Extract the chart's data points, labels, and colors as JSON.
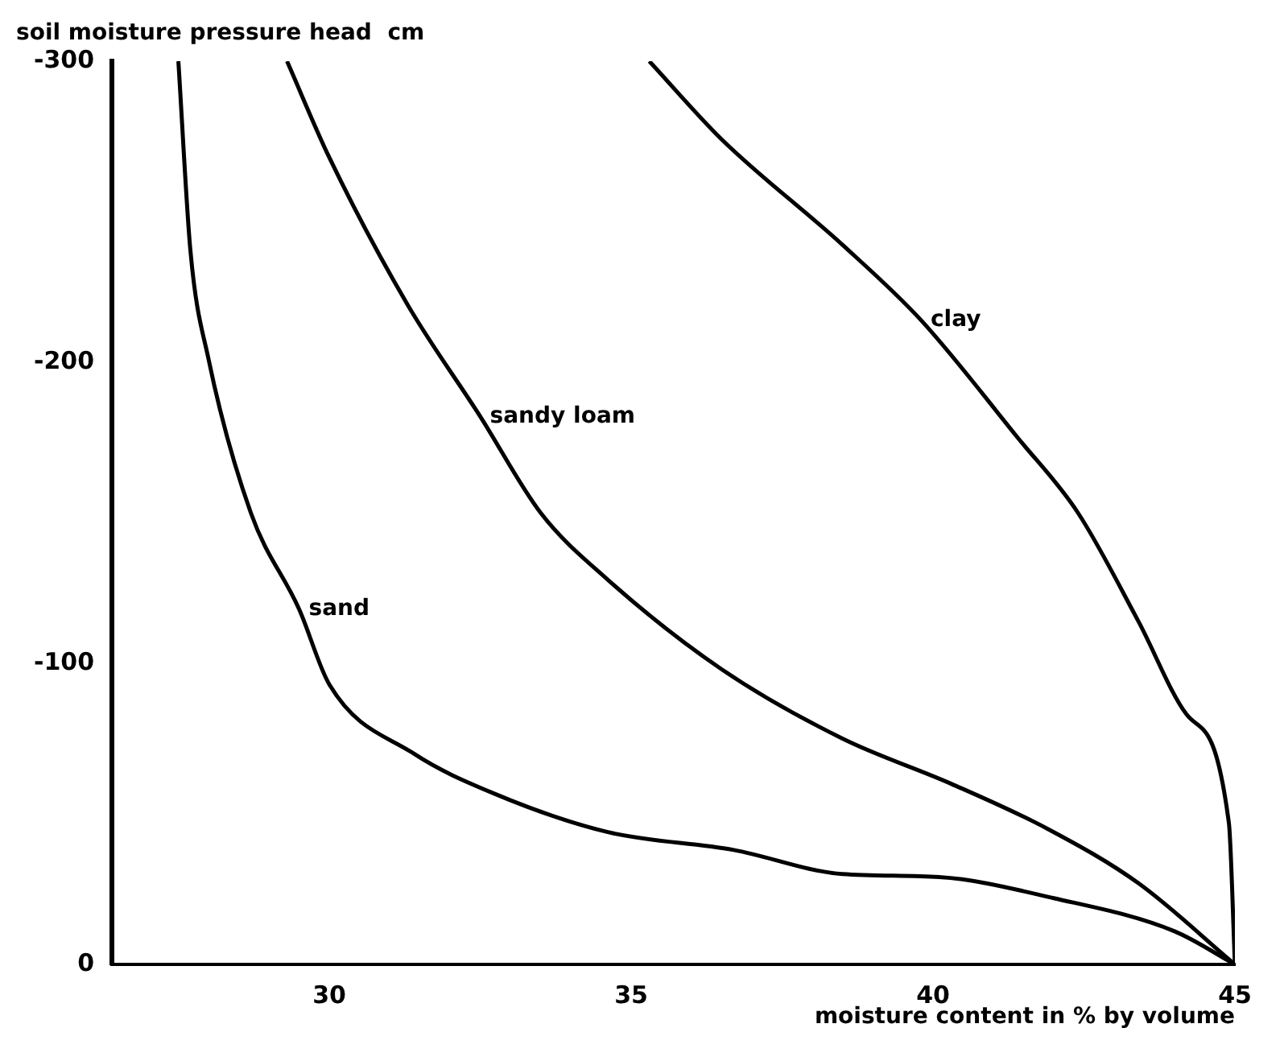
{
  "chart_data": {
    "type": "line",
    "xlabel": "moisture content in % by volume",
    "ylabel": "soil moisture pressure head  cm",
    "xlim": [
      26.4,
      45
    ],
    "xticks": [
      30,
      35,
      40,
      45
    ],
    "ylim": [
      0,
      -300
    ],
    "yticks": [
      0,
      -100,
      -200,
      -300
    ],
    "grid": false,
    "legend": false,
    "marker": "none",
    "line_style": "solid",
    "series": [
      {
        "name": "sand",
        "color": "#000000",
        "x": [
          27.5,
          27.7,
          28.0,
          28.7,
          29.5,
          30.0,
          31.4,
          32.7,
          34.6,
          36.7,
          38.5,
          40.1,
          42.0,
          44.0,
          45.0
        ],
        "values": [
          -300,
          -237,
          -201,
          -150,
          -118,
          -93,
          -70,
          -57,
          -44,
          -38,
          -30,
          -29,
          -22,
          -11,
          0
        ]
      },
      {
        "name": "sandy loam",
        "color": "#000000",
        "x": [
          29.3,
          30.0,
          31.3,
          32.5,
          33.5,
          34.6,
          36.5,
          38.5,
          40.3,
          41.9,
          43.4,
          45.0
        ],
        "values": [
          -300,
          -268,
          -219,
          -182,
          -150,
          -128,
          -98,
          -75,
          -60,
          -45,
          -27,
          0
        ]
      },
      {
        "name": "clay",
        "color": "#000000",
        "x": [
          35.3,
          36.5,
          38.5,
          39.8,
          41.4,
          42.4,
          43.4,
          44.2,
          44.9,
          45.0
        ],
        "values": [
          -300,
          -274,
          -239,
          -214,
          -175,
          -150,
          -114,
          -83,
          -47,
          0
        ]
      }
    ]
  }
}
